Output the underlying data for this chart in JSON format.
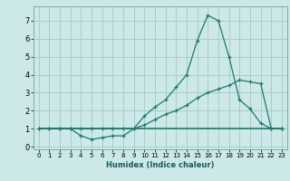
{
  "xlabel": "Humidex (Indice chaleur)",
  "background_color": "#cce8e8",
  "grid_color": "#aacccc",
  "line_color": "#1a7a6e",
  "xlim": [
    -0.5,
    23.5
  ],
  "ylim": [
    -0.15,
    7.8
  ],
  "xticks": [
    0,
    1,
    2,
    3,
    4,
    5,
    6,
    7,
    8,
    9,
    10,
    11,
    12,
    13,
    14,
    15,
    16,
    17,
    18,
    19,
    20,
    21,
    22,
    23
  ],
  "yticks": [
    0,
    1,
    2,
    3,
    4,
    5,
    6,
    7
  ],
  "line1_x": [
    0,
    1,
    2,
    3,
    4,
    5,
    6,
    7,
    8,
    9,
    10,
    11,
    12,
    13,
    14,
    15,
    16,
    17,
    18,
    19,
    20,
    21,
    22,
    23
  ],
  "line1_y": [
    1.0,
    1.0,
    1.0,
    1.0,
    0.6,
    0.4,
    0.5,
    0.6,
    0.6,
    1.0,
    1.7,
    2.2,
    2.6,
    3.3,
    4.0,
    5.9,
    7.3,
    7.0,
    5.0,
    2.6,
    2.1,
    1.3,
    1.0,
    1.0
  ],
  "line2_x": [
    0,
    1,
    2,
    3,
    4,
    5,
    6,
    7,
    8,
    9,
    10,
    11,
    12,
    13,
    14,
    15,
    16,
    17,
    18,
    19,
    20,
    21,
    22,
    23
  ],
  "line2_y": [
    1.0,
    1.0,
    1.0,
    1.0,
    1.0,
    1.0,
    1.0,
    1.0,
    1.0,
    1.0,
    1.2,
    1.5,
    1.8,
    2.0,
    2.3,
    2.7,
    3.0,
    3.2,
    3.4,
    3.7,
    3.6,
    3.5,
    1.0,
    1.0
  ],
  "line3_x": [
    0,
    23
  ],
  "line3_y": [
    1.0,
    1.0
  ],
  "xlabel_fontsize": 6.0,
  "tick_fontsize_x": 5.0,
  "tick_fontsize_y": 6.0
}
